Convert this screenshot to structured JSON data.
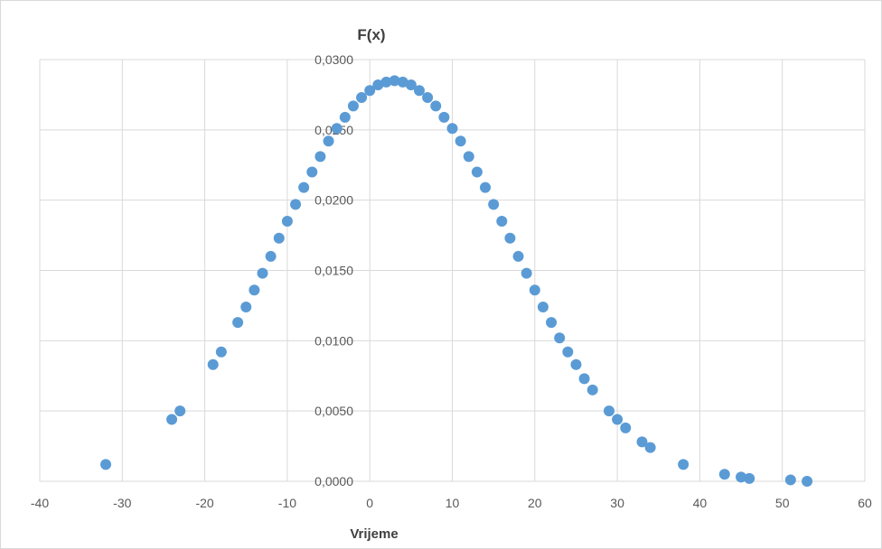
{
  "chart_data": {
    "type": "scatter",
    "title": "F(x)",
    "xlabel": "Vrijeme",
    "ylabel": "",
    "xlim": [
      -40,
      60
    ],
    "ylim": [
      0,
      0.03
    ],
    "x_ticks": [
      "-40",
      "-30",
      "-20",
      "-10",
      "0",
      "10",
      "20",
      "30",
      "40",
      "50",
      "60"
    ],
    "y_ticks": [
      "0,0000",
      "0,0050",
      "0,0100",
      "0,0150",
      "0,0200",
      "0,0250",
      "0,0300"
    ],
    "grid": true,
    "legend": "none",
    "marker_color": "#5B9BD5",
    "series": [
      {
        "points": [
          [
            -32,
            0.0012
          ],
          [
            -24,
            0.0044
          ],
          [
            -23,
            0.005
          ],
          [
            -19,
            0.0083
          ],
          [
            -18,
            0.0092
          ],
          [
            -16,
            0.0113
          ],
          [
            -15,
            0.0124
          ],
          [
            -14,
            0.0136
          ],
          [
            -13,
            0.0148
          ],
          [
            -12,
            0.016
          ],
          [
            -11,
            0.0173
          ],
          [
            -10,
            0.0185
          ],
          [
            -9,
            0.0197
          ],
          [
            -8,
            0.0209
          ],
          [
            -7,
            0.022
          ],
          [
            -6,
            0.0231
          ],
          [
            -5,
            0.0242
          ],
          [
            -4,
            0.0251
          ],
          [
            -3,
            0.0259
          ],
          [
            -2,
            0.0267
          ],
          [
            -1,
            0.0273
          ],
          [
            0,
            0.0278
          ],
          [
            1,
            0.0282
          ],
          [
            2,
            0.0284
          ],
          [
            3,
            0.0285
          ],
          [
            4,
            0.0284
          ],
          [
            5,
            0.0282
          ],
          [
            6,
            0.0278
          ],
          [
            7,
            0.0273
          ],
          [
            8,
            0.0267
          ],
          [
            9,
            0.0259
          ],
          [
            10,
            0.0251
          ],
          [
            11,
            0.0242
          ],
          [
            12,
            0.0231
          ],
          [
            13,
            0.022
          ],
          [
            14,
            0.0209
          ],
          [
            15,
            0.0197
          ],
          [
            16,
            0.0185
          ],
          [
            17,
            0.0173
          ],
          [
            18,
            0.016
          ],
          [
            19,
            0.0148
          ],
          [
            20,
            0.0136
          ],
          [
            21,
            0.0124
          ],
          [
            22,
            0.0113
          ],
          [
            23,
            0.0102
          ],
          [
            24,
            0.0092
          ],
          [
            25,
            0.0083
          ],
          [
            26,
            0.0073
          ],
          [
            27,
            0.0065
          ],
          [
            29,
            0.005
          ],
          [
            30,
            0.0044
          ],
          [
            31,
            0.0038
          ],
          [
            33,
            0.0028
          ],
          [
            34,
            0.0024
          ],
          [
            38,
            0.0012
          ],
          [
            43,
            0.0005
          ],
          [
            45,
            0.0003
          ],
          [
            46,
            0.0002
          ],
          [
            51,
            0.0001
          ],
          [
            53,
            0.0
          ]
        ]
      }
    ]
  }
}
